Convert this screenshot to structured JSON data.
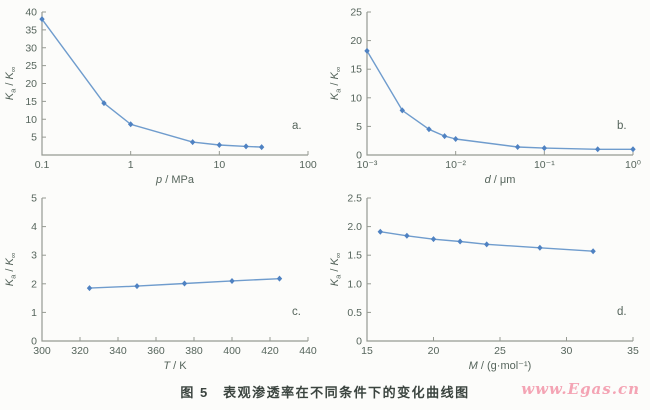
{
  "figure": {
    "caption": "图 5　表观渗透率在不同条件下的变化曲线图",
    "watermark": "www.Egas.cn"
  },
  "colors": {
    "line": "#6f9ccd",
    "marker": "#4f82c2",
    "axis": "#969a92",
    "text": "#56655c",
    "panel_label": "#56655c"
  },
  "chart_data": [
    {
      "id": "a",
      "type": "line",
      "panel_label": "a.",
      "xscale": "log",
      "xlim": [
        0.1,
        100
      ],
      "ylim": [
        0,
        40
      ],
      "x": [
        0.1,
        0.5,
        1,
        5,
        10,
        20,
        30
      ],
      "y": [
        38,
        14.5,
        8.6,
        3.6,
        2.8,
        2.4,
        2.2
      ],
      "xticks": [
        {
          "v": 0.1,
          "label": "0.1"
        },
        {
          "v": 1,
          "label": "1"
        },
        {
          "v": 10,
          "label": "10"
        },
        {
          "v": 100,
          "label": "100"
        }
      ],
      "yticks": [
        {
          "v": 5,
          "label": "5"
        },
        {
          "v": 10,
          "label": "10"
        },
        {
          "v": 15,
          "label": "15"
        },
        {
          "v": 20,
          "label": "20"
        },
        {
          "v": 25,
          "label": "25"
        },
        {
          "v": 30,
          "label": "30"
        },
        {
          "v": 35,
          "label": "35"
        },
        {
          "v": 40,
          "label": "40"
        }
      ],
      "xlabel": [
        {
          "t": "p",
          "italic": true
        },
        {
          "t": " / MPa"
        }
      ],
      "ylabel": [
        {
          "t": "K",
          "italic": true
        },
        {
          "t": "a",
          "sub": true
        },
        {
          "t": " / "
        },
        {
          "t": "K",
          "italic": true
        },
        {
          "t": "∞",
          "sub": true
        }
      ],
      "grid": false,
      "legend": "none"
    },
    {
      "id": "b",
      "type": "line",
      "panel_label": "b.",
      "xscale": "log",
      "xlim": [
        0.001,
        1
      ],
      "ylim": [
        0,
        25
      ],
      "x": [
        0.001,
        0.0025,
        0.005,
        0.0075,
        0.01,
        0.05,
        0.1,
        0.4,
        1
      ],
      "y": [
        18.2,
        7.8,
        4.5,
        3.3,
        2.8,
        1.4,
        1.2,
        1.0,
        1.0
      ],
      "xticks": [
        {
          "v": 0.001,
          "label": "10⁻³"
        },
        {
          "v": 0.01,
          "label": "10⁻²"
        },
        {
          "v": 0.1,
          "label": "10⁻¹"
        },
        {
          "v": 1,
          "label": "10⁰"
        }
      ],
      "yticks": [
        {
          "v": 0,
          "label": "0"
        },
        {
          "v": 5,
          "label": "5"
        },
        {
          "v": 10,
          "label": "10"
        },
        {
          "v": 15,
          "label": "15"
        },
        {
          "v": 20,
          "label": "20"
        },
        {
          "v": 25,
          "label": "25"
        }
      ],
      "xlabel": [
        {
          "t": "d",
          "italic": true
        },
        {
          "t": " / μm"
        }
      ],
      "ylabel": [
        {
          "t": "K",
          "italic": true
        },
        {
          "t": "a",
          "sub": true
        },
        {
          "t": " / "
        },
        {
          "t": "K",
          "italic": true
        },
        {
          "t": "∞",
          "sub": true
        }
      ],
      "grid": false,
      "legend": "none"
    },
    {
      "id": "c",
      "type": "line",
      "panel_label": "c.",
      "xscale": "linear",
      "xlim": [
        300,
        440
      ],
      "ylim": [
        0,
        5
      ],
      "x": [
        325,
        350,
        375,
        400,
        425
      ],
      "y": [
        1.85,
        1.92,
        2.01,
        2.1,
        2.18
      ],
      "xticks": [
        {
          "v": 300,
          "label": "300"
        },
        {
          "v": 320,
          "label": "320"
        },
        {
          "v": 340,
          "label": "340"
        },
        {
          "v": 360,
          "label": "360"
        },
        {
          "v": 380,
          "label": "380"
        },
        {
          "v": 400,
          "label": "400"
        },
        {
          "v": 420,
          "label": "420"
        },
        {
          "v": 440,
          "label": "440"
        }
      ],
      "yticks": [
        {
          "v": 0,
          "label": "0"
        },
        {
          "v": 1,
          "label": "1"
        },
        {
          "v": 2,
          "label": "2"
        },
        {
          "v": 3,
          "label": "3"
        },
        {
          "v": 4,
          "label": "4"
        },
        {
          "v": 5,
          "label": "5"
        }
      ],
      "xlabel": [
        {
          "t": "T",
          "italic": true
        },
        {
          "t": " / K"
        }
      ],
      "ylabel": [
        {
          "t": "K",
          "italic": true
        },
        {
          "t": "a",
          "sub": true
        },
        {
          "t": " / "
        },
        {
          "t": "K",
          "italic": true
        },
        {
          "t": "∞",
          "sub": true
        }
      ],
      "grid": false,
      "legend": "none"
    },
    {
      "id": "d",
      "type": "line",
      "panel_label": "d.",
      "xscale": "linear",
      "xlim": [
        15,
        35
      ],
      "ylim": [
        0,
        2.5
      ],
      "x": [
        16,
        18,
        20,
        22,
        24,
        28,
        32
      ],
      "y": [
        1.91,
        1.84,
        1.78,
        1.74,
        1.69,
        1.63,
        1.57
      ],
      "xticks": [
        {
          "v": 15,
          "label": "15"
        },
        {
          "v": 20,
          "label": "20"
        },
        {
          "v": 25,
          "label": "25"
        },
        {
          "v": 30,
          "label": "30"
        },
        {
          "v": 35,
          "label": "35"
        }
      ],
      "yticks": [
        {
          "v": 0,
          "label": "0"
        },
        {
          "v": 0.5,
          "label": "0.5"
        },
        {
          "v": 1,
          "label": "1.0"
        },
        {
          "v": 1.5,
          "label": "1.5"
        },
        {
          "v": 2,
          "label": "2.0"
        },
        {
          "v": 2.5,
          "label": "2.5"
        }
      ],
      "xlabel": [
        {
          "t": "M",
          "italic": true
        },
        {
          "t": " / (g·mol"
        },
        {
          "t": "⁻¹"
        },
        {
          "t": ")"
        }
      ],
      "ylabel": [
        {
          "t": "K",
          "italic": true
        },
        {
          "t": "a",
          "sub": true
        },
        {
          "t": " / "
        },
        {
          "t": "K",
          "italic": true
        },
        {
          "t": "∞",
          "sub": true
        }
      ],
      "grid": false,
      "legend": "none"
    }
  ]
}
